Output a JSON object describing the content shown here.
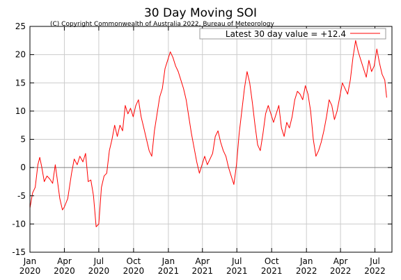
{
  "chart_data": {
    "type": "line",
    "title": "30 Day Moving SOI",
    "subtitle": "(C) Copyright Commonwealth of Australia 2022, Bureau of Meteorology",
    "xlabel": "",
    "ylabel": "",
    "ylim": [
      -15,
      25
    ],
    "yticks": [
      -15,
      -10,
      -5,
      0,
      5,
      10,
      15,
      20,
      25
    ],
    "xlim": [
      "2020-01-01",
      "2022-08-15"
    ],
    "xticks": [
      {
        "date": "2020-01-01",
        "line1": "Jan",
        "line2": "2020"
      },
      {
        "date": "2020-04-01",
        "line1": "Apr",
        "line2": "2020"
      },
      {
        "date": "2020-07-01",
        "line1": "Jul",
        "line2": "2020"
      },
      {
        "date": "2020-10-01",
        "line1": "Oct",
        "line2": "2020"
      },
      {
        "date": "2021-01-01",
        "line1": "Jan",
        "line2": "2021"
      },
      {
        "date": "2021-04-01",
        "line1": "Apr",
        "line2": "2021"
      },
      {
        "date": "2021-07-01",
        "line1": "Jul",
        "line2": "2021"
      },
      {
        "date": "2021-10-01",
        "line1": "Oct",
        "line2": "2021"
      },
      {
        "date": "2022-01-01",
        "line1": "Jan",
        "line2": "2022"
      },
      {
        "date": "2022-04-01",
        "line1": "Apr",
        "line2": "2022"
      },
      {
        "date": "2022-07-01",
        "line1": "Jul",
        "line2": "2022"
      }
    ],
    "grid": true,
    "zero_line": true,
    "legend_position": "top-right",
    "series": [
      {
        "name": "Latest 30 day value = +12.4",
        "color": "#ff0000",
        "points": [
          [
            "2020-01-01",
            -7.2
          ],
          [
            "2020-01-08",
            -4.5
          ],
          [
            "2020-01-15",
            -3.5
          ],
          [
            "2020-01-22",
            0.5
          ],
          [
            "2020-01-27",
            1.8
          ],
          [
            "2020-02-01",
            0.2
          ],
          [
            "2020-02-08",
            -2.5
          ],
          [
            "2020-02-15",
            -1.5
          ],
          [
            "2020-02-22",
            -2.0
          ],
          [
            "2020-03-01",
            -2.8
          ],
          [
            "2020-03-08",
            0.5
          ],
          [
            "2020-03-12",
            -1.5
          ],
          [
            "2020-03-20",
            -5.5
          ],
          [
            "2020-03-27",
            -7.5
          ],
          [
            "2020-04-01",
            -7.0
          ],
          [
            "2020-04-10",
            -5.5
          ],
          [
            "2020-04-20",
            -1.0
          ],
          [
            "2020-04-27",
            1.5
          ],
          [
            "2020-05-05",
            0.5
          ],
          [
            "2020-05-12",
            2.0
          ],
          [
            "2020-05-20",
            1.0
          ],
          [
            "2020-05-27",
            2.5
          ],
          [
            "2020-06-03",
            -2.5
          ],
          [
            "2020-06-10",
            -2.2
          ],
          [
            "2020-06-17",
            -5.0
          ],
          [
            "2020-06-24",
            -10.5
          ],
          [
            "2020-07-01",
            -10.0
          ],
          [
            "2020-07-08",
            -3.5
          ],
          [
            "2020-07-15",
            -1.5
          ],
          [
            "2020-07-22",
            -1.0
          ],
          [
            "2020-07-29",
            3.0
          ],
          [
            "2020-08-05",
            5.0
          ],
          [
            "2020-08-12",
            7.5
          ],
          [
            "2020-08-19",
            5.5
          ],
          [
            "2020-08-26",
            7.5
          ],
          [
            "2020-09-02",
            6.5
          ],
          [
            "2020-09-09",
            11.0
          ],
          [
            "2020-09-16",
            9.5
          ],
          [
            "2020-09-23",
            10.5
          ],
          [
            "2020-09-30",
            9.0
          ],
          [
            "2020-10-07",
            11.0
          ],
          [
            "2020-10-14",
            12.0
          ],
          [
            "2020-10-21",
            9.0
          ],
          [
            "2020-10-28",
            7.0
          ],
          [
            "2020-11-04",
            5.0
          ],
          [
            "2020-11-11",
            3.0
          ],
          [
            "2020-11-18",
            2.0
          ],
          [
            "2020-11-25",
            6.5
          ],
          [
            "2020-12-02",
            9.5
          ],
          [
            "2020-12-09",
            12.5
          ],
          [
            "2020-12-16",
            14.0
          ],
          [
            "2020-12-23",
            17.5
          ],
          [
            "2020-12-30",
            19.0
          ],
          [
            "2021-01-06",
            20.5
          ],
          [
            "2021-01-13",
            19.5
          ],
          [
            "2021-01-20",
            18.0
          ],
          [
            "2021-01-27",
            17.0
          ],
          [
            "2021-02-03",
            15.5
          ],
          [
            "2021-02-10",
            14.0
          ],
          [
            "2021-02-17",
            12.0
          ],
          [
            "2021-02-24",
            9.0
          ],
          [
            "2021-03-03",
            6.0
          ],
          [
            "2021-03-10",
            3.5
          ],
          [
            "2021-03-17",
            1.0
          ],
          [
            "2021-03-24",
            -1.0
          ],
          [
            "2021-03-31",
            0.5
          ],
          [
            "2021-04-07",
            2.0
          ],
          [
            "2021-04-14",
            0.5
          ],
          [
            "2021-04-21",
            1.5
          ],
          [
            "2021-04-28",
            2.5
          ],
          [
            "2021-05-05",
            5.5
          ],
          [
            "2021-05-12",
            6.5
          ],
          [
            "2021-05-19",
            4.5
          ],
          [
            "2021-05-26",
            3.0
          ],
          [
            "2021-06-02",
            2.0
          ],
          [
            "2021-06-09",
            0.0
          ],
          [
            "2021-06-16",
            -1.5
          ],
          [
            "2021-06-23",
            -3.0
          ],
          [
            "2021-06-30",
            0.5
          ],
          [
            "2021-07-07",
            6.0
          ],
          [
            "2021-07-14",
            10.0
          ],
          [
            "2021-07-21",
            14.0
          ],
          [
            "2021-07-28",
            17.0
          ],
          [
            "2021-08-04",
            15.0
          ],
          [
            "2021-08-11",
            11.5
          ],
          [
            "2021-08-18",
            7.5
          ],
          [
            "2021-08-25",
            4.0
          ],
          [
            "2021-09-01",
            3.0
          ],
          [
            "2021-09-08",
            6.0
          ],
          [
            "2021-09-15",
            9.5
          ],
          [
            "2021-09-22",
            11.0
          ],
          [
            "2021-09-29",
            9.5
          ],
          [
            "2021-10-06",
            8.0
          ],
          [
            "2021-10-13",
            9.5
          ],
          [
            "2021-10-20",
            11.0
          ],
          [
            "2021-10-27",
            7.0
          ],
          [
            "2021-11-03",
            5.5
          ],
          [
            "2021-11-10",
            8.0
          ],
          [
            "2021-11-17",
            7.0
          ],
          [
            "2021-11-24",
            9.0
          ],
          [
            "2021-12-01",
            12.0
          ],
          [
            "2021-12-08",
            13.5
          ],
          [
            "2021-12-15",
            13.0
          ],
          [
            "2021-12-22",
            12.0
          ],
          [
            "2021-12-29",
            14.5
          ],
          [
            "2022-01-05",
            13.0
          ],
          [
            "2022-01-12",
            10.0
          ],
          [
            "2022-01-19",
            5.0
          ],
          [
            "2022-01-26",
            2.0
          ],
          [
            "2022-02-02",
            3.0
          ],
          [
            "2022-02-09",
            4.5
          ],
          [
            "2022-02-16",
            6.5
          ],
          [
            "2022-02-23",
            9.0
          ],
          [
            "2022-03-02",
            12.0
          ],
          [
            "2022-03-09",
            11.0
          ],
          [
            "2022-03-16",
            8.5
          ],
          [
            "2022-03-23",
            10.0
          ],
          [
            "2022-03-30",
            12.5
          ],
          [
            "2022-04-06",
            15.0
          ],
          [
            "2022-04-13",
            14.0
          ],
          [
            "2022-04-20",
            13.0
          ],
          [
            "2022-04-27",
            15.5
          ],
          [
            "2022-05-04",
            19.5
          ],
          [
            "2022-05-11",
            22.5
          ],
          [
            "2022-05-18",
            20.5
          ],
          [
            "2022-05-25",
            19.0
          ],
          [
            "2022-06-01",
            17.5
          ],
          [
            "2022-06-08",
            16.0
          ],
          [
            "2022-06-15",
            19.0
          ],
          [
            "2022-06-22",
            17.0
          ],
          [
            "2022-06-29",
            18.0
          ],
          [
            "2022-07-06",
            21.0
          ],
          [
            "2022-07-13",
            18.5
          ],
          [
            "2022-07-20",
            16.5
          ],
          [
            "2022-07-27",
            15.5
          ],
          [
            "2022-08-01",
            12.4
          ]
        ]
      }
    ]
  }
}
